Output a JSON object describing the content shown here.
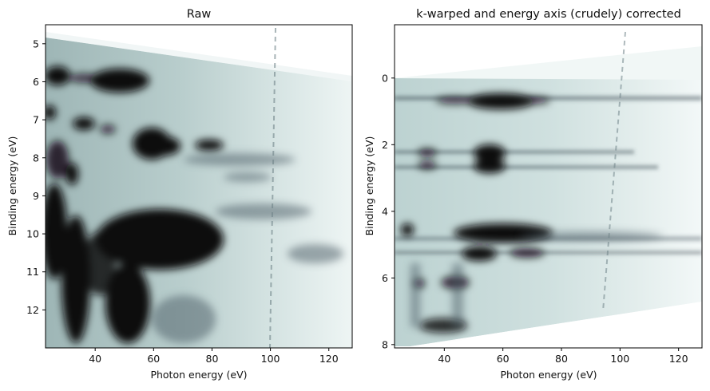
{
  "chart_data": [
    {
      "type": "heatmap",
      "title": "Raw",
      "xlabel": "Photon energy (eV)",
      "ylabel": "Binding energy (eV)",
      "xlim": [
        23,
        128
      ],
      "ylim": [
        13,
        4.5
      ],
      "y_inverted": true,
      "xticks": [
        40,
        60,
        80,
        100,
        120
      ],
      "yticks": [
        5,
        6,
        7,
        8,
        9,
        10,
        11,
        12
      ],
      "colormap": "bone_r",
      "coverage_top_edge": [
        [
          23,
          4.75
        ],
        [
          128,
          5.9
        ]
      ],
      "features": [
        {
          "x": [
            23,
            70
          ],
          "y": [
            5.55,
            6.15
          ],
          "label": "band near 5.8 eV"
        },
        {
          "x": [
            23,
            45
          ],
          "y": [
            6.6,
            7.2
          ],
          "label": "band near 6.9 eV"
        },
        {
          "x": [
            50,
            70
          ],
          "y": [
            7.2,
            8.3
          ],
          "label": "blob near 7.7 eV"
        },
        {
          "x": [
            72,
            88
          ],
          "y": [
            7.45,
            7.8
          ],
          "label": "band near 7.6 eV"
        },
        {
          "x": [
            23,
            85
          ],
          "y": [
            9.3,
            13
          ],
          "label": "strong feature 10–13 eV"
        }
      ]
    },
    {
      "type": "heatmap",
      "title": "k-warped and energy axis (crudely) corrected",
      "xlabel": "Photon energy (eV)",
      "ylabel": "Binding energy (eV)",
      "xlim": [
        23,
        128
      ],
      "ylim": [
        8.1,
        -1.6
      ],
      "y_inverted": true,
      "xticks": [
        40,
        60,
        80,
        100,
        120
      ],
      "yticks": [
        0,
        2,
        4,
        6,
        8
      ],
      "colormap": "bone_r",
      "features": [
        {
          "x": [
            47,
            73
          ],
          "y": [
            0.4,
            0.85
          ],
          "label": "band near 0.6 eV"
        },
        {
          "x": [
            50,
            63
          ],
          "y": [
            1.95,
            2.85
          ],
          "label": "band near 2.3 eV"
        },
        {
          "x": [
            45,
            85
          ],
          "y": [
            4.4,
            5.0
          ],
          "label": "band near 4.7 eV"
        },
        {
          "x": [
            48,
            75
          ],
          "y": [
            5.05,
            5.45
          ],
          "label": "band near 5.2 eV"
        },
        {
          "x": [
            27,
            55
          ],
          "y": [
            5.8,
            7.6
          ],
          "label": "low-energy region"
        }
      ]
    }
  ]
}
